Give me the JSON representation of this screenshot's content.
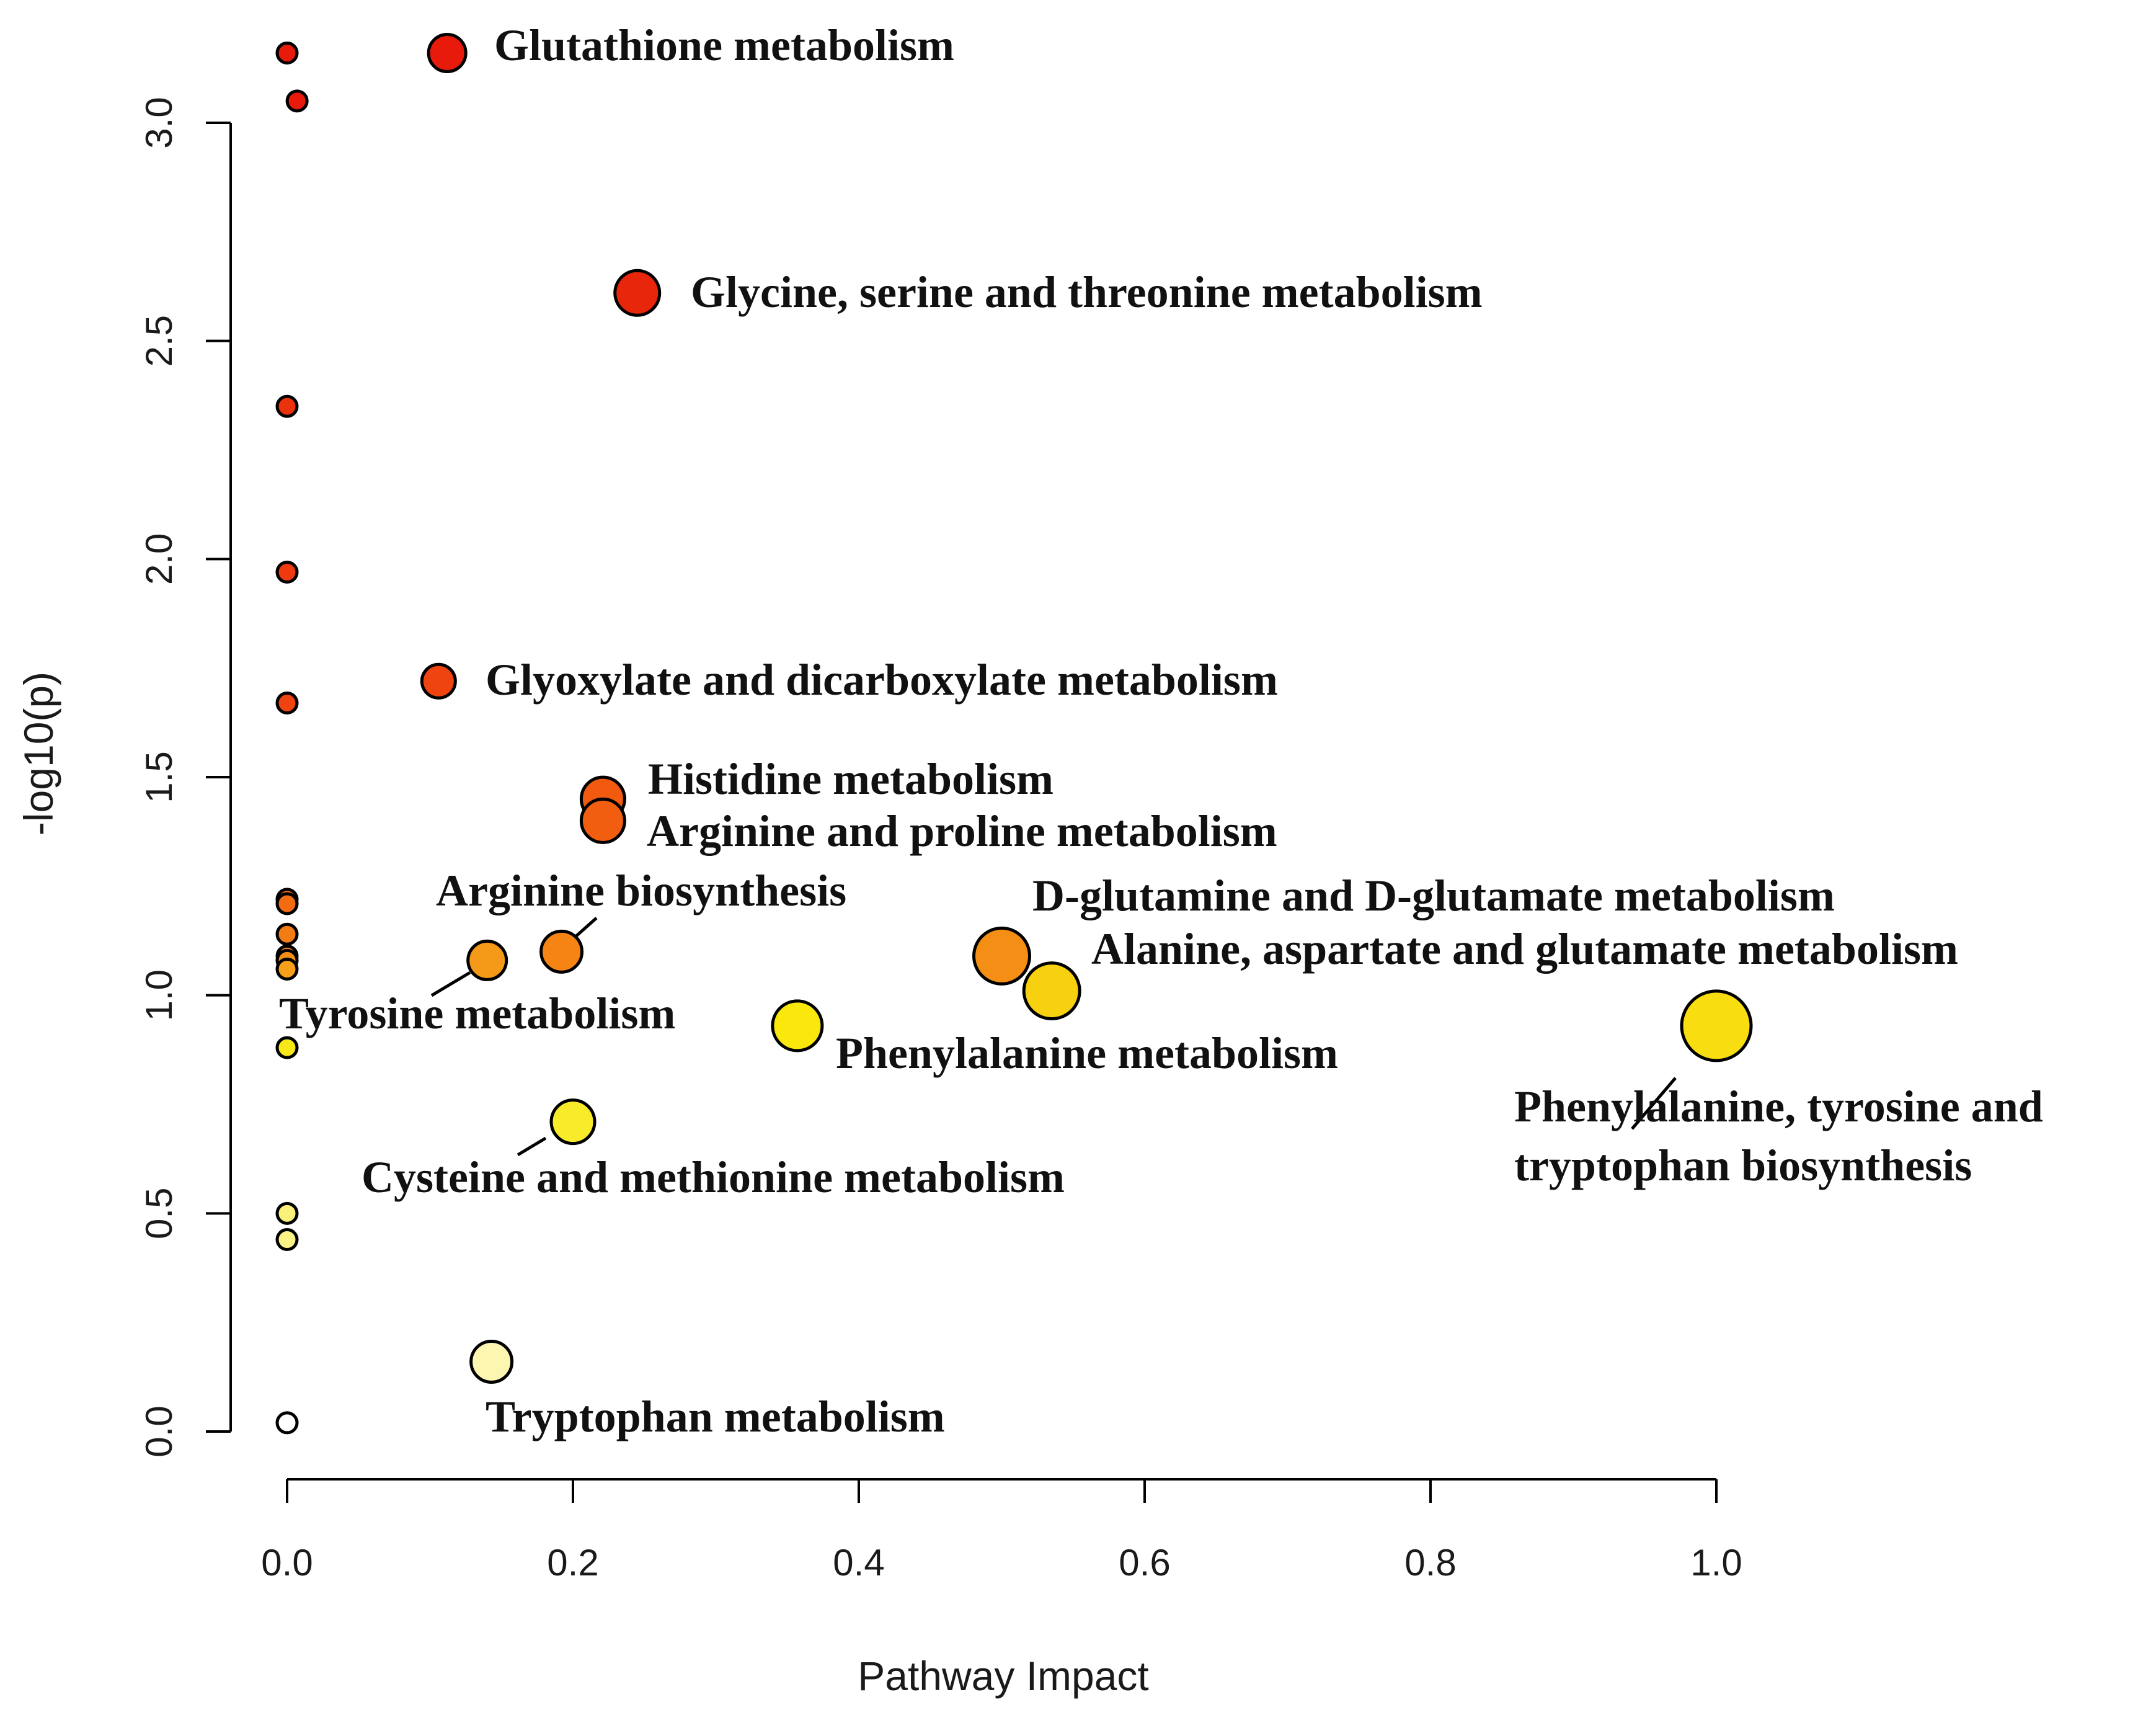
{
  "chart_data": {
    "type": "scatter",
    "title": "",
    "xlabel": "Pathway Impact",
    "ylabel": "-log10(p)",
    "xlim": [
      0,
      1.0
    ],
    "ylim": [
      0,
      3.0
    ],
    "x_ticks": [
      "0.0",
      "0.2",
      "0.4",
      "0.6",
      "0.8",
      "1.0"
    ],
    "y_ticks": [
      "0.0",
      "0.5",
      "1.0",
      "1.5",
      "2.0",
      "2.5",
      "3.0"
    ],
    "grid": false,
    "legend": "none",
    "points": [
      {
        "x": 0.0,
        "y": 3.16,
        "label": "",
        "color": "#e81a0c"
      },
      {
        "x": 0.112,
        "y": 3.16,
        "label": "Glutathione metabolism",
        "color": "#e81a0c"
      },
      {
        "x": 0.007,
        "y": 3.05,
        "label": "",
        "color": "#e81a0c"
      },
      {
        "x": 0.245,
        "y": 2.61,
        "label": "Glycine, serine and threonine metabolism",
        "color": "#e8260c"
      },
      {
        "x": 0.0,
        "y": 2.35,
        "label": "",
        "color": "#ec320c"
      },
      {
        "x": 0.0,
        "y": 1.97,
        "label": "",
        "color": "#ee3a0e"
      },
      {
        "x": 0.106,
        "y": 1.72,
        "label": "Glyoxylate and dicarboxylate metabolism",
        "color": "#f04410"
      },
      {
        "x": 0.0,
        "y": 1.67,
        "label": "",
        "color": "#f04410"
      },
      {
        "x": 0.221,
        "y": 1.45,
        "label": "Histidine metabolism",
        "color": "#f25a10"
      },
      {
        "x": 0.221,
        "y": 1.4,
        "label": "Arginine and proline metabolism",
        "color": "#f25e10"
      },
      {
        "x": 0.0,
        "y": 1.22,
        "label": "",
        "color": "#f46c12"
      },
      {
        "x": 0.0,
        "y": 1.21,
        "label": "",
        "color": "#f46c12"
      },
      {
        "x": 0.0,
        "y": 1.14,
        "label": "",
        "color": "#f47c14"
      },
      {
        "x": 0.0,
        "y": 1.09,
        "label": "",
        "color": "#f58a14"
      },
      {
        "x": 0.0,
        "y": 1.08,
        "label": "",
        "color": "#f58e14"
      },
      {
        "x": 0.0,
        "y": 1.06,
        "label": "",
        "color": "#f7a018"
      },
      {
        "x": 0.192,
        "y": 1.1,
        "label": "Arginine biosynthesis",
        "color": "#f58414"
      },
      {
        "x": 0.14,
        "y": 1.08,
        "label": "Tyrosine metabolism",
        "color": "#f59a18"
      },
      {
        "x": 0.5,
        "y": 1.09,
        "label": "D-glutamine and D-glutamate metabolism",
        "color": "#f58e14"
      },
      {
        "x": 0.535,
        "y": 1.01,
        "label": "Alanine, aspartate and glutamate metabolism",
        "color": "#f7d010"
      },
      {
        "x": 0.357,
        "y": 0.93,
        "label": "Phenylalanine metabolism",
        "color": "#fae80c"
      },
      {
        "x": 1.0,
        "y": 0.93,
        "label": "Phenylalanine, tyrosine and tryptophan biosynthesis",
        "color": "#f8de10"
      },
      {
        "x": 0.0,
        "y": 0.88,
        "label": "",
        "color": "#f8e81a"
      },
      {
        "x": 0.2,
        "y": 0.71,
        "label": "Cysteine and methionine metabolism",
        "color": "#f8ec2a"
      },
      {
        "x": 0.0,
        "y": 0.5,
        "label": "",
        "color": "#fbf07a"
      },
      {
        "x": 0.0,
        "y": 0.44,
        "label": "",
        "color": "#fbf286"
      },
      {
        "x": 0.143,
        "y": 0.16,
        "label": "Tryptophan metabolism",
        "color": "#fdf6b0"
      },
      {
        "x": 0.0,
        "y": 0.02,
        "label": "",
        "color": "#ffffff"
      }
    ]
  }
}
